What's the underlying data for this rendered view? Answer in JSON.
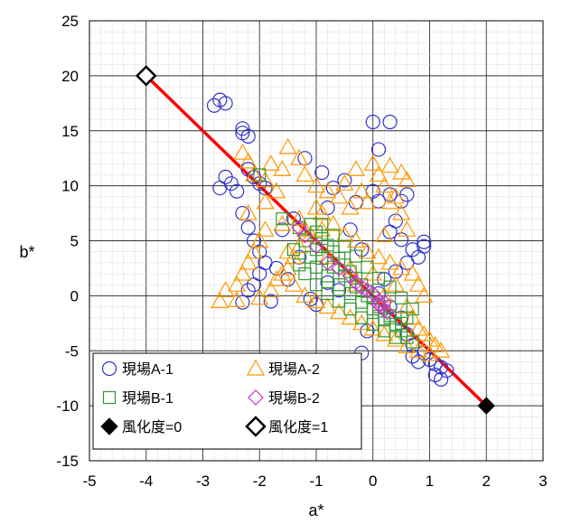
{
  "chart_data": {
    "type": "scatter",
    "title": "",
    "xlabel": "a*",
    "ylabel": "b*",
    "xlim": [
      -5,
      3
    ],
    "ylim": [
      -15,
      25
    ],
    "x_ticks": [
      "-5",
      "-4",
      "-3",
      "-2",
      "-1",
      "0",
      "1",
      "2",
      "3"
    ],
    "y_ticks": [
      "-15",
      "-10",
      "-5",
      "0",
      "5",
      "10",
      "15",
      "20",
      "25"
    ],
    "grid": "major and minor",
    "legend_position": "bottom-left",
    "legend": [
      "現場A-1",
      "現場A-2",
      "現場B-1",
      "現場B-2",
      "風化度=0",
      "風化度=1"
    ],
    "line": {
      "points": [
        [
          -4,
          20
        ],
        [
          2,
          -10
        ]
      ],
      "color": "#ff0000"
    },
    "series": [
      {
        "name": "現場A-1",
        "marker": "circle",
        "color": "#3333cc",
        "points": [
          [
            -2.7,
            17.8
          ],
          [
            -2.8,
            17.3
          ],
          [
            -2.6,
            17.5
          ],
          [
            -2.3,
            15.2
          ],
          [
            -2.2,
            14.5
          ],
          [
            -2.3,
            14.8
          ],
          [
            0,
            15.8
          ],
          [
            0.3,
            15.8
          ],
          [
            0.1,
            13.3
          ],
          [
            -2.6,
            10.8
          ],
          [
            -2.5,
            10.2
          ],
          [
            -2.7,
            9.8
          ],
          [
            -2.4,
            9.5
          ],
          [
            -2.2,
            11.5
          ],
          [
            -2.1,
            10.8
          ],
          [
            -2.0,
            10.2
          ],
          [
            -1.9,
            9.8
          ],
          [
            -2.3,
            7.5
          ],
          [
            -2.2,
            6.2
          ],
          [
            -2.1,
            5.0
          ],
          [
            -2.0,
            4.0
          ],
          [
            -1.9,
            3.0
          ],
          [
            -2.0,
            2.0
          ],
          [
            -2.1,
            1.0
          ],
          [
            -2.2,
            0.5
          ],
          [
            -2.3,
            -0.6
          ],
          [
            -1.8,
            -0.5
          ],
          [
            -1.6,
            6.0
          ],
          [
            -1.4,
            7.0
          ],
          [
            -1.2,
            12.5
          ],
          [
            -0.9,
            11.2
          ],
          [
            -0.7,
            9.8
          ],
          [
            -0.5,
            10.5
          ],
          [
            -0.3,
            8.5
          ],
          [
            0.1,
            8.6
          ],
          [
            0.3,
            9.2
          ],
          [
            0.5,
            8.6
          ],
          [
            0.6,
            9.2
          ],
          [
            0.4,
            6.8
          ],
          [
            0.3,
            5.8
          ],
          [
            0.5,
            5.1
          ],
          [
            0.7,
            4.2
          ],
          [
            0.6,
            3.0
          ],
          [
            0.4,
            2.2
          ],
          [
            0.2,
            1.5
          ],
          [
            0.1,
            0.2
          ],
          [
            0.3,
            -1.0
          ],
          [
            0.5,
            -2.0
          ],
          [
            0.6,
            -3.5
          ],
          [
            0.7,
            -4.5
          ],
          [
            0.9,
            -5.2
          ],
          [
            1.0,
            -5.8
          ],
          [
            1.1,
            -6.2
          ],
          [
            1.2,
            -6.5
          ],
          [
            1.3,
            -6.8
          ],
          [
            1.1,
            -7.2
          ],
          [
            1.2,
            -7.6
          ],
          [
            0.8,
            -6.0
          ],
          [
            0.7,
            -5.5
          ],
          [
            0.9,
            4.5
          ],
          [
            0.9,
            4.9
          ],
          [
            0.8,
            3.5
          ],
          [
            -0.6,
            0.5
          ],
          [
            -0.8,
            1.2
          ],
          [
            -1.1,
            -0.3
          ],
          [
            -1.5,
            1.5
          ],
          [
            -1.7,
            2.5
          ],
          [
            -0.2,
            -5.2
          ],
          [
            -0.1,
            -3.2
          ],
          [
            -1.0,
            -0.8
          ],
          [
            -0.4,
            6.0
          ],
          [
            -0.2,
            4.2
          ],
          [
            -1.3,
            3.5
          ],
          [
            -0.8,
            8.0
          ],
          [
            0.0,
            9.5
          ]
        ]
      },
      {
        "name": "現場A-2",
        "marker": "triangle",
        "color": "#ff9900",
        "points": [
          [
            -2.3,
            13.0
          ],
          [
            -2.2,
            12.2
          ],
          [
            -2.1,
            11.0
          ],
          [
            -1.9,
            10.5
          ],
          [
            -1.8,
            12.0
          ],
          [
            -1.6,
            11.5
          ],
          [
            -1.5,
            13.5
          ],
          [
            -1.3,
            12.5
          ],
          [
            -1.2,
            11.0
          ],
          [
            -1.0,
            10.0
          ],
          [
            -0.8,
            9.5
          ],
          [
            -0.5,
            10.2
          ],
          [
            -0.3,
            11.5
          ],
          [
            0.0,
            12.0
          ],
          [
            0.1,
            11.0
          ],
          [
            0.3,
            11.8
          ],
          [
            0.5,
            11.2
          ],
          [
            0.6,
            10.5
          ],
          [
            0.2,
            10.0
          ],
          [
            0.4,
            9.0
          ],
          [
            -0.1,
            8.5
          ],
          [
            -0.4,
            8.0
          ],
          [
            -0.9,
            7.5
          ],
          [
            -1.3,
            7.0
          ],
          [
            -1.6,
            6.5
          ],
          [
            -1.9,
            6.0
          ],
          [
            -2.0,
            5.0
          ],
          [
            -2.1,
            4.0
          ],
          [
            -2.2,
            3.0
          ],
          [
            -2.3,
            2.0
          ],
          [
            -2.4,
            1.0
          ],
          [
            -2.6,
            0.5
          ],
          [
            -2.7,
            -0.5
          ],
          [
            -2.4,
            -0.4
          ],
          [
            -2.0,
            -0.2
          ],
          [
            -1.8,
            0.5
          ],
          [
            -1.7,
            1.5
          ],
          [
            -1.5,
            2.5
          ],
          [
            -1.4,
            3.5
          ],
          [
            -1.3,
            4.5
          ],
          [
            -1.1,
            5.5
          ],
          [
            -0.9,
            6.0
          ],
          [
            -0.7,
            6.5
          ],
          [
            -0.5,
            5.5
          ],
          [
            -0.3,
            5.0
          ],
          [
            -0.1,
            4.0
          ],
          [
            0.1,
            3.5
          ],
          [
            0.3,
            3.0
          ],
          [
            0.5,
            2.5
          ],
          [
            0.7,
            2.0
          ],
          [
            0.8,
            1.0
          ],
          [
            0.9,
            0.0
          ],
          [
            0.6,
            -1.0
          ],
          [
            0.7,
            -2.0
          ],
          [
            0.8,
            -3.0
          ],
          [
            0.9,
            -3.5
          ],
          [
            1.0,
            -4.0
          ],
          [
            1.1,
            -4.5
          ],
          [
            1.2,
            -5.0
          ],
          [
            1.0,
            -5.3
          ],
          [
            0.8,
            -5.0
          ],
          [
            0.6,
            -4.6
          ],
          [
            0.4,
            -4.0
          ],
          [
            0.2,
            -3.5
          ],
          [
            0.0,
            -3.0
          ],
          [
            -0.2,
            -2.5
          ],
          [
            -0.4,
            -2.0
          ],
          [
            -0.6,
            -1.5
          ],
          [
            -0.8,
            -1.0
          ],
          [
            -1.0,
            -0.5
          ],
          [
            -1.2,
            0.0
          ],
          [
            -1.4,
            1.0
          ],
          [
            -1.6,
            2.0
          ],
          [
            -1.5,
            4.0
          ],
          [
            -1.2,
            6.0
          ],
          [
            -1.0,
            8.0
          ],
          [
            -0.6,
            9.0
          ],
          [
            -0.2,
            9.5
          ],
          [
            0.3,
            8.5
          ],
          [
            0.5,
            7.5
          ],
          [
            0.6,
            6.0
          ],
          [
            0.2,
            5.5
          ],
          [
            -0.8,
            3.5
          ],
          [
            -0.4,
            2.5
          ],
          [
            0.0,
            2.0
          ],
          [
            0.4,
            1.0
          ],
          [
            0.2,
            0.0
          ],
          [
            -0.3,
            1.0
          ],
          [
            -1.9,
            8.5
          ],
          [
            -1.7,
            9.5
          ],
          [
            -2.2,
            7.5
          ]
        ]
      },
      {
        "name": "現場B-1",
        "marker": "square",
        "color": "#339933",
        "points": [
          [
            -2.0,
            11.0
          ],
          [
            -1.6,
            7.0
          ],
          [
            -1.3,
            6.2
          ],
          [
            -1.1,
            6.5
          ],
          [
            -1.0,
            5.8
          ],
          [
            -0.9,
            5.2
          ],
          [
            -0.8,
            4.6
          ],
          [
            -0.7,
            4.0
          ],
          [
            -0.6,
            3.4
          ],
          [
            -0.5,
            2.8
          ],
          [
            -0.4,
            2.2
          ],
          [
            -0.3,
            1.6
          ],
          [
            -0.2,
            1.0
          ],
          [
            -0.1,
            0.4
          ],
          [
            0.0,
            -0.2
          ],
          [
            0.1,
            -0.8
          ],
          [
            0.2,
            -1.4
          ],
          [
            0.3,
            -2.0
          ],
          [
            0.4,
            -2.6
          ],
          [
            0.5,
            -3.2
          ],
          [
            0.6,
            -3.8
          ],
          [
            0.7,
            -4.2
          ],
          [
            -1.2,
            5.0
          ],
          [
            -1.0,
            4.2
          ],
          [
            -0.9,
            3.4
          ],
          [
            -0.7,
            2.6
          ],
          [
            -0.5,
            1.8
          ],
          [
            -0.3,
            0.8
          ],
          [
            -0.1,
            0.0
          ],
          [
            0.1,
            -1.0
          ],
          [
            0.3,
            -1.8
          ],
          [
            0.5,
            -2.5
          ],
          [
            -1.1,
            3.5
          ],
          [
            -1.0,
            2.6
          ],
          [
            -0.8,
            1.8
          ],
          [
            -0.6,
            1.0
          ],
          [
            -0.4,
            0.2
          ],
          [
            -0.2,
            -0.6
          ],
          [
            0.0,
            -1.2
          ],
          [
            0.2,
            -2.2
          ],
          [
            -1.2,
            2.0
          ],
          [
            -1.0,
            1.0
          ],
          [
            -0.8,
            0.2
          ],
          [
            -0.6,
            -0.5
          ],
          [
            -0.4,
            -1.2
          ],
          [
            -0.2,
            -2.0
          ],
          [
            -1.4,
            4.2
          ],
          [
            -1.3,
            2.8
          ],
          [
            -0.9,
            6.5
          ],
          [
            -0.7,
            5.5
          ],
          [
            -0.5,
            4.5
          ],
          [
            -0.3,
            3.6
          ],
          [
            -0.1,
            2.6
          ],
          [
            0.1,
            1.6
          ],
          [
            0.3,
            0.8
          ],
          [
            0.5,
            -0.2
          ],
          [
            0.7,
            -1.2
          ],
          [
            0.6,
            -2.0
          ],
          [
            0.4,
            -3.8
          ],
          [
            0.2,
            -3.2
          ],
          [
            0.0,
            -2.6
          ]
        ]
      },
      {
        "name": "現場B-2",
        "marker": "diamond",
        "color": "#cc33cc",
        "points": [
          [
            -1.3,
            6.2
          ],
          [
            -1.2,
            5.5
          ],
          [
            -1.0,
            4.5
          ],
          [
            -0.8,
            3.0
          ],
          [
            -0.6,
            2.5
          ],
          [
            -0.4,
            1.8
          ],
          [
            -0.3,
            1.2
          ],
          [
            -0.2,
            0.8
          ],
          [
            -0.1,
            0.5
          ],
          [
            0.0,
            0.2
          ],
          [
            0.1,
            -0.5
          ],
          [
            0.15,
            -1.0
          ],
          [
            0.2,
            -1.3
          ],
          [
            0.25,
            -1.5
          ],
          [
            0.1,
            -0.8
          ],
          [
            0.2,
            -0.6
          ]
        ]
      },
      {
        "name": "風化度=0",
        "marker": "filled-diamond",
        "color": "#000000",
        "points": [
          [
            2,
            -10
          ]
        ]
      },
      {
        "name": "風化度=1",
        "marker": "open-diamond",
        "color": "#000000",
        "points": [
          [
            -4,
            20
          ]
        ]
      }
    ]
  }
}
